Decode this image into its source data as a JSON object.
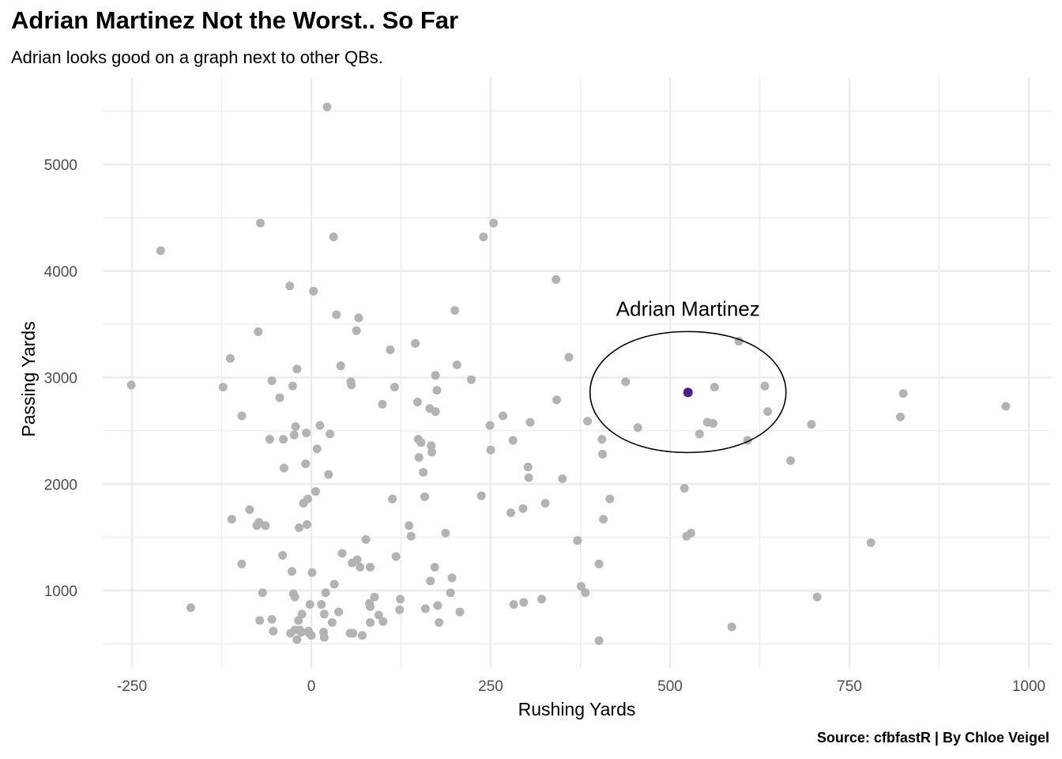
{
  "title": "Adrian Martinez Not the Worst.. So Far",
  "subtitle": "Adrian looks good on a graph next to other QBs.",
  "caption": "Source: cfbfastR | By Chloe Veigel",
  "chart_data": {
    "type": "scatter",
    "xlabel": "Rushing Yards",
    "ylabel": "Passing Yards",
    "xlim": [
      -250,
      1000
    ],
    "ylim": [
      500,
      5500
    ],
    "x_ticks": [
      -250,
      0,
      250,
      500,
      750,
      1000
    ],
    "y_ticks": [
      1000,
      2000,
      3000,
      4000,
      5000
    ],
    "grid": true,
    "colors": {
      "points": "#b3b3b3",
      "highlight": "#4b1f86",
      "grid": "#ebebeb",
      "ellipse": "#000000"
    },
    "highlight": {
      "label": "Adrian Martinez",
      "x": 525,
      "y": 2860
    },
    "points": [
      [
        -251,
        2930
      ],
      [
        -210,
        4190
      ],
      [
        -168,
        840
      ],
      [
        -123,
        2910
      ],
      [
        -113,
        3180
      ],
      [
        -111,
        1670
      ],
      [
        -97,
        2640
      ],
      [
        -97,
        1250
      ],
      [
        -86,
        1760
      ],
      [
        -76,
        1610
      ],
      [
        -74,
        3430
      ],
      [
        -73,
        1640
      ],
      [
        -72,
        720
      ],
      [
        -71,
        4450
      ],
      [
        -68,
        980
      ],
      [
        -64,
        1610
      ],
      [
        -58,
        2420
      ],
      [
        -55,
        2970
      ],
      [
        -55,
        730
      ],
      [
        -53,
        620
      ],
      [
        -44,
        2810
      ],
      [
        -40,
        1330
      ],
      [
        -39,
        2420
      ],
      [
        -38,
        2150
      ],
      [
        -30,
        3860
      ],
      [
        -29,
        600
      ],
      [
        -27,
        1180
      ],
      [
        -26,
        2920
      ],
      [
        -25,
        970
      ],
      [
        -24,
        2460
      ],
      [
        -23,
        630
      ],
      [
        -23,
        940
      ],
      [
        -22,
        2540
      ],
      [
        -20,
        3080
      ],
      [
        -20,
        540
      ],
      [
        -18,
        720
      ],
      [
        -17,
        1590
      ],
      [
        -16,
        630
      ],
      [
        -14,
        610
      ],
      [
        -13,
        780
      ],
      [
        -11,
        1820
      ],
      [
        -8,
        2190
      ],
      [
        -7,
        2480
      ],
      [
        -6,
        1620
      ],
      [
        -5,
        1860
      ],
      [
        -4,
        620
      ],
      [
        -3,
        600
      ],
      [
        -2,
        870
      ],
      [
        0,
        580
      ],
      [
        1,
        1170
      ],
      [
        3,
        3810
      ],
      [
        6,
        1930
      ],
      [
        8,
        2330
      ],
      [
        12,
        2550
      ],
      [
        14,
        870
      ],
      [
        17,
        610
      ],
      [
        18,
        780
      ],
      [
        18,
        560
      ],
      [
        20,
        980
      ],
      [
        22,
        5540
      ],
      [
        24,
        2090
      ],
      [
        26,
        2470
      ],
      [
        29,
        700
      ],
      [
        31,
        4320
      ],
      [
        32,
        1060
      ],
      [
        35,
        3590
      ],
      [
        38,
        800
      ],
      [
        41,
        3110
      ],
      [
        43,
        1350
      ],
      [
        54,
        600
      ],
      [
        55,
        2960
      ],
      [
        56,
        2930
      ],
      [
        57,
        1260
      ],
      [
        58,
        600
      ],
      [
        63,
        3440
      ],
      [
        64,
        1290
      ],
      [
        66,
        3560
      ],
      [
        68,
        1220
      ],
      [
        71,
        580
      ],
      [
        76,
        1480
      ],
      [
        81,
        880
      ],
      [
        82,
        850
      ],
      [
        82,
        1220
      ],
      [
        82,
        700
      ],
      [
        88,
        940
      ],
      [
        94,
        770
      ],
      [
        99,
        2750
      ],
      [
        100,
        710
      ],
      [
        110,
        3260
      ],
      [
        113,
        1860
      ],
      [
        116,
        2910
      ],
      [
        118,
        1320
      ],
      [
        123,
        820
      ],
      [
        124,
        920
      ],
      [
        136,
        1610
      ],
      [
        139,
        1510
      ],
      [
        145,
        3320
      ],
      [
        148,
        2770
      ],
      [
        149,
        2420
      ],
      [
        150,
        2250
      ],
      [
        153,
        2390
      ],
      [
        156,
        2110
      ],
      [
        158,
        1880
      ],
      [
        159,
        830
      ],
      [
        165,
        2710
      ],
      [
        166,
        1090
      ],
      [
        167,
        2360
      ],
      [
        168,
        2300
      ],
      [
        172,
        1220
      ],
      [
        173,
        3020
      ],
      [
        173,
        2680
      ],
      [
        175,
        2880
      ],
      [
        176,
        860
      ],
      [
        178,
        700
      ],
      [
        187,
        1540
      ],
      [
        194,
        980
      ],
      [
        196,
        1120
      ],
      [
        200,
        3630
      ],
      [
        203,
        3120
      ],
      [
        207,
        800
      ],
      [
        223,
        2980
      ],
      [
        237,
        1890
      ],
      [
        240,
        4320
      ],
      [
        249,
        2550
      ],
      [
        250,
        2320
      ],
      [
        254,
        4450
      ],
      [
        267,
        2640
      ],
      [
        278,
        1730
      ],
      [
        281,
        2410
      ],
      [
        282,
        870
      ],
      [
        295,
        1770
      ],
      [
        296,
        890
      ],
      [
        302,
        2160
      ],
      [
        303,
        2060
      ],
      [
        305,
        2580
      ],
      [
        321,
        920
      ],
      [
        326,
        1820
      ],
      [
        341,
        3920
      ],
      [
        342,
        2790
      ],
      [
        350,
        2050
      ],
      [
        359,
        3190
      ],
      [
        371,
        1470
      ],
      [
        376,
        1040
      ],
      [
        382,
        980
      ],
      [
        385,
        2590
      ],
      [
        401,
        530
      ],
      [
        401,
        1250
      ],
      [
        405,
        2420
      ],
      [
        406,
        2280
      ],
      [
        407,
        1670
      ],
      [
        416,
        1860
      ],
      [
        438,
        2960
      ],
      [
        455,
        2530
      ],
      [
        520,
        1960
      ],
      [
        523,
        1510
      ],
      [
        529,
        1540
      ],
      [
        541,
        2470
      ],
      [
        552,
        2580
      ],
      [
        560,
        2570
      ],
      [
        562,
        2910
      ],
      [
        586,
        660
      ],
      [
        596,
        3340
      ],
      [
        608,
        2410
      ],
      [
        632,
        2920
      ],
      [
        636,
        2680
      ],
      [
        668,
        2220
      ],
      [
        697,
        2560
      ],
      [
        705,
        940
      ],
      [
        780,
        1450
      ],
      [
        821,
        2630
      ],
      [
        825,
        2850
      ],
      [
        968,
        2730
      ]
    ]
  }
}
